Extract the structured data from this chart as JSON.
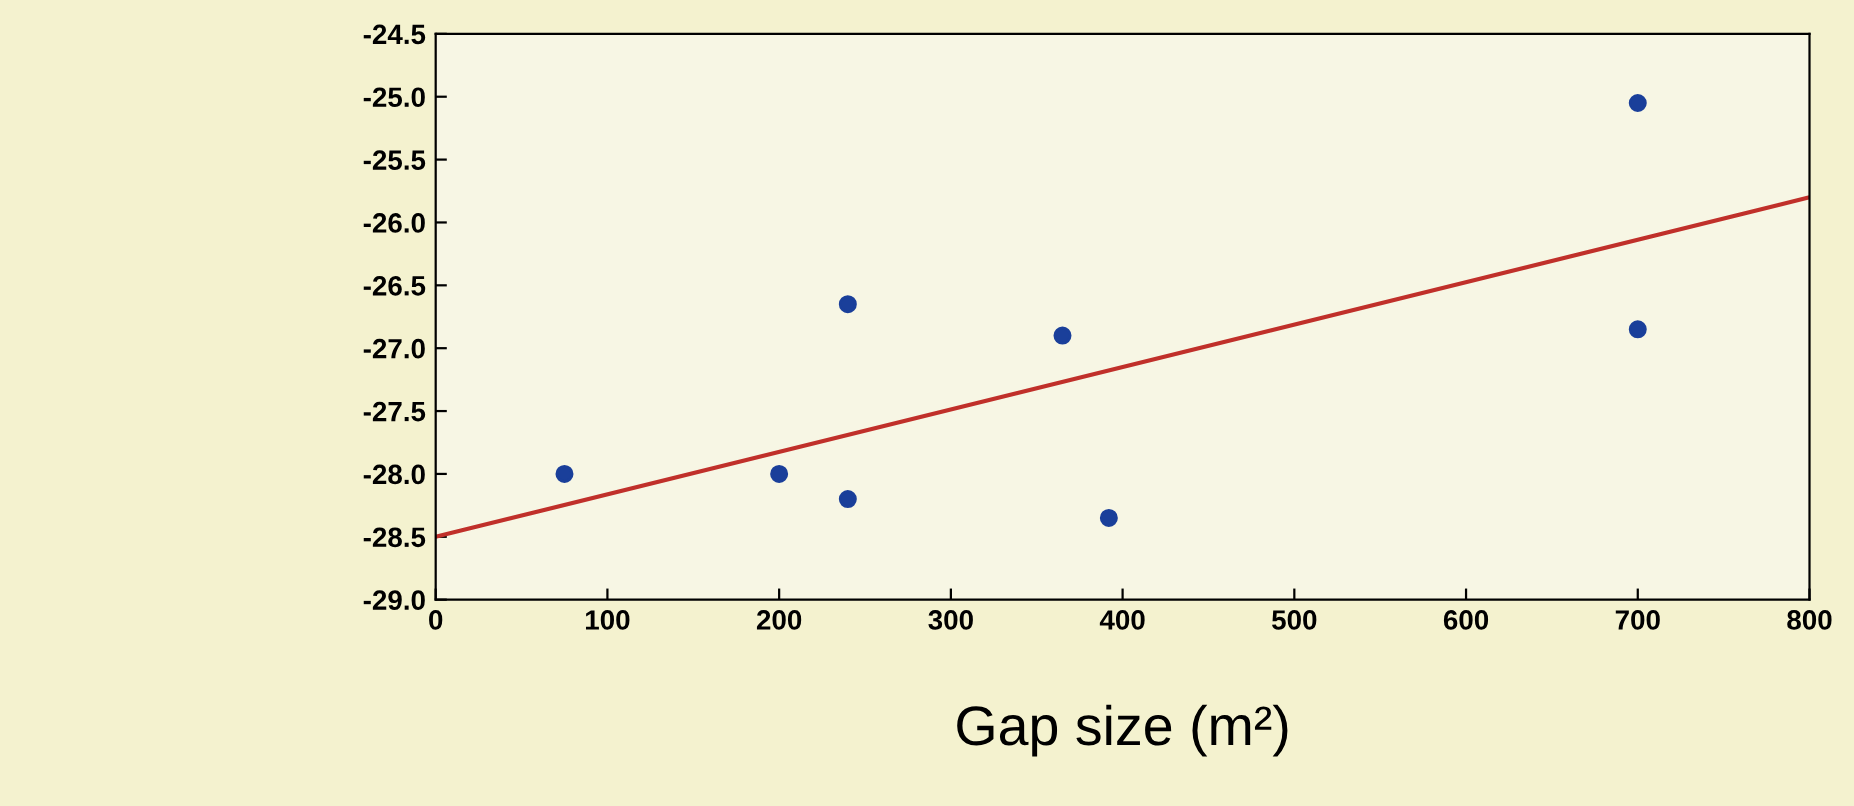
{
  "chart_data": {
    "type": "scatter",
    "xlabel": "Gap size (m²)",
    "series": [
      {
        "color": "#1a3f9a",
        "marker": "circle",
        "x": [
          75,
          200,
          240,
          240,
          365,
          392,
          700,
          700
        ],
        "values": [
          -28.0,
          -28.0,
          -28.2,
          -26.65,
          -26.9,
          -28.35,
          -25.05,
          -26.85
        ]
      },
      {
        "type": "line",
        "color": "#c0302a",
        "marker": "none",
        "line_style": "solid",
        "x": [
          0,
          800
        ],
        "values": [
          -28.5,
          -25.8
        ]
      }
    ],
    "xlim": [
      0,
      800
    ],
    "xticks": [
      0,
      100,
      200,
      300,
      400,
      500,
      600,
      700,
      800
    ],
    "ylim": [
      -29.0,
      -24.5
    ],
    "yticks": [
      {
        "value": -29,
        "label": "-29.0"
      },
      -28.5,
      {
        "value": -28,
        "label": "-28.0"
      },
      -27.5,
      {
        "value": -27,
        "label": "-27.0"
      },
      -26.5,
      {
        "value": -26,
        "label": "-26.0"
      },
      -25.5,
      {
        "value": -25,
        "label": "-25.0"
      },
      -24.5
    ],
    "grid": false,
    "legend": false
  }
}
